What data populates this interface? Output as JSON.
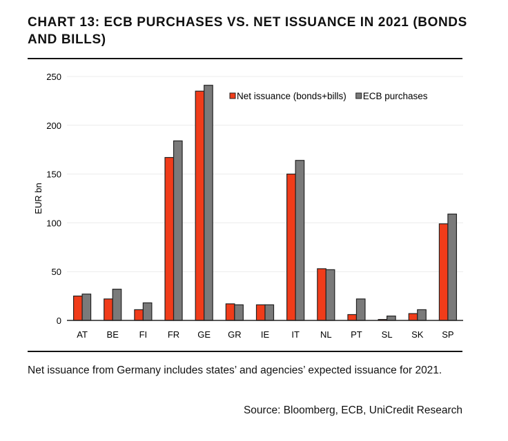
{
  "title": "CHART 13: ECB PURCHASES VS. NET ISSUANCE IN 2021 (BONDS AND BILLS)",
  "note": "Net issuance from Germany includes states’ and agencies’ expected issuance for 2021.",
  "source": "Source: Bloomberg, ECB, UniCredit Research",
  "chart_data": {
    "type": "bar",
    "title": "",
    "xlabel": "",
    "ylabel": "EUR bn",
    "ylim": [
      0,
      250
    ],
    "yticks": [
      0,
      50,
      100,
      150,
      200,
      250
    ],
    "grid": true,
    "legend": "top-right",
    "categories": [
      "AT",
      "BE",
      "FI",
      "FR",
      "GE",
      "GR",
      "IE",
      "IT",
      "NL",
      "PT",
      "SL",
      "SK",
      "SP"
    ],
    "series": [
      {
        "name": "Net issuance (bonds+bills)",
        "color": "#f03c1a",
        "values": [
          25,
          22,
          11,
          167,
          235,
          17,
          16,
          150,
          53,
          6,
          1,
          7,
          99
        ]
      },
      {
        "name": "ECB purchases",
        "color": "#7a7a7a",
        "values": [
          27,
          32,
          18,
          184,
          241,
          16,
          16,
          164,
          52,
          22,
          4.5,
          11,
          109
        ]
      }
    ]
  }
}
